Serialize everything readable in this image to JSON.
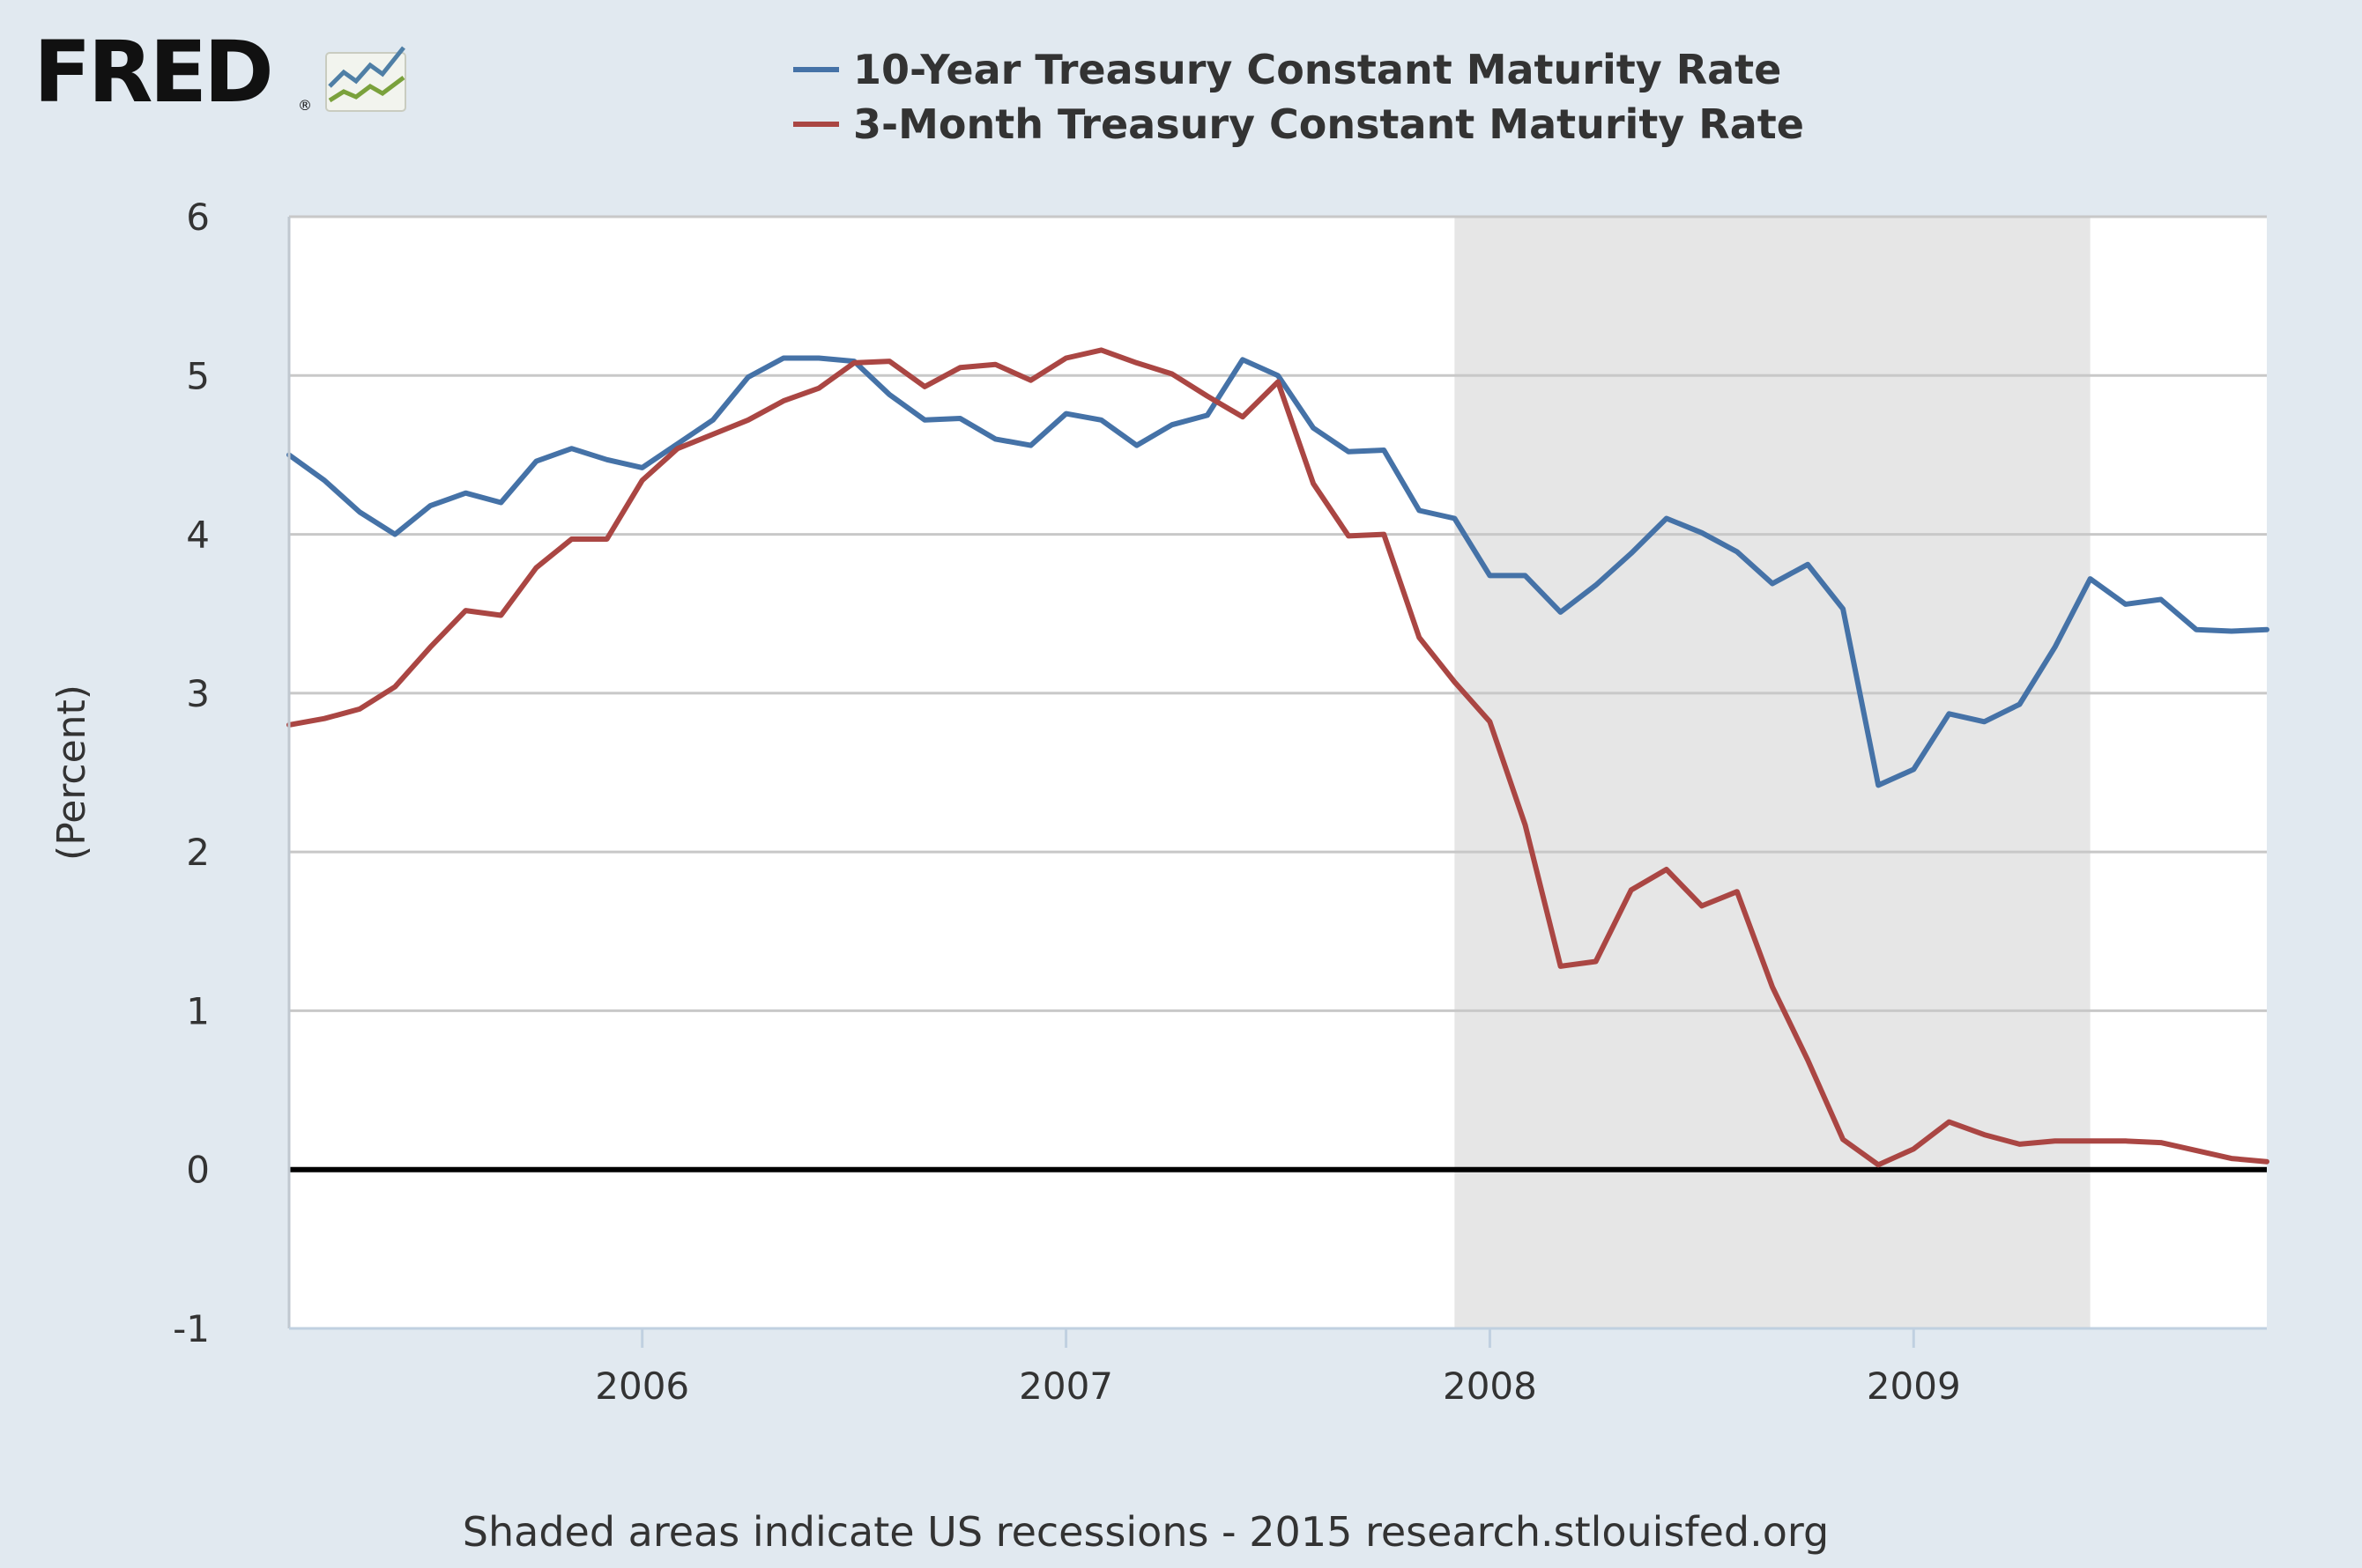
{
  "logo": {
    "text": "FRED",
    "reg": "®"
  },
  "footer": "Shaded areas indicate US recessions - 2015 research.stlouisfed.org",
  "chart_data": {
    "type": "line",
    "title": "",
    "xlabel": "",
    "ylabel": "(Percent)",
    "ylim": [
      -1,
      6
    ],
    "yticks": [
      "6",
      "5",
      "4",
      "3",
      "2",
      "1",
      "0",
      "-1"
    ],
    "xticks": [
      "2006",
      "2007",
      "2008",
      "2009"
    ],
    "xrange": [
      "2005-03",
      "2009-11"
    ],
    "grid": true,
    "legend_position": "top",
    "recession": {
      "start": "2007-12",
      "end": "2009-06"
    },
    "x": [
      "2005-03",
      "2005-04",
      "2005-05",
      "2005-06",
      "2005-07",
      "2005-08",
      "2005-09",
      "2005-10",
      "2005-11",
      "2005-12",
      "2006-01",
      "2006-02",
      "2006-03",
      "2006-04",
      "2006-05",
      "2006-06",
      "2006-07",
      "2006-08",
      "2006-09",
      "2006-10",
      "2006-11",
      "2006-12",
      "2007-01",
      "2007-02",
      "2007-03",
      "2007-04",
      "2007-05",
      "2007-06",
      "2007-07",
      "2007-08",
      "2007-09",
      "2007-10",
      "2007-11",
      "2007-12",
      "2008-01",
      "2008-02",
      "2008-03",
      "2008-04",
      "2008-05",
      "2008-06",
      "2008-07",
      "2008-08",
      "2008-09",
      "2008-10",
      "2008-11",
      "2008-12",
      "2009-01",
      "2009-02",
      "2009-03",
      "2009-04",
      "2009-05",
      "2009-06",
      "2009-07",
      "2009-08",
      "2009-09",
      "2009-10",
      "2009-11"
    ],
    "series": [
      {
        "name": "10-Year Treasury Constant Maturity Rate",
        "color": "#4572a7",
        "values": [
          4.5,
          4.34,
          4.14,
          4.0,
          4.18,
          4.26,
          4.2,
          4.46,
          4.54,
          4.47,
          4.42,
          4.57,
          4.72,
          4.99,
          5.11,
          5.11,
          5.09,
          4.88,
          4.72,
          4.73,
          4.6,
          4.56,
          4.76,
          4.72,
          4.56,
          4.69,
          4.75,
          5.1,
          5.0,
          4.67,
          4.52,
          4.53,
          4.15,
          4.1,
          3.74,
          3.74,
          3.51,
          3.68,
          3.88,
          4.1,
          4.01,
          3.89,
          3.69,
          3.81,
          3.53,
          2.42,
          2.52,
          2.87,
          2.82,
          2.93,
          3.29,
          3.72,
          3.56,
          3.59,
          3.4,
          3.39,
          3.4
        ]
      },
      {
        "name": "3-Month Treasury Constant Maturity Rate",
        "color": "#aa4643",
        "values": [
          2.8,
          2.84,
          2.9,
          3.04,
          3.29,
          3.52,
          3.49,
          3.79,
          3.97,
          3.97,
          4.34,
          4.54,
          4.63,
          4.72,
          4.84,
          4.92,
          5.08,
          5.09,
          4.93,
          5.05,
          5.07,
          4.97,
          5.11,
          5.16,
          5.08,
          5.01,
          4.87,
          4.74,
          4.96,
          4.32,
          3.99,
          4.0,
          3.35,
          3.07,
          2.82,
          2.17,
          1.28,
          1.31,
          1.76,
          1.89,
          1.66,
          1.75,
          1.15,
          0.69,
          0.19,
          0.03,
          0.13,
          0.3,
          0.22,
          0.16,
          0.18,
          0.18,
          0.18,
          0.17,
          0.12,
          0.07,
          0.05
        ]
      }
    ]
  }
}
